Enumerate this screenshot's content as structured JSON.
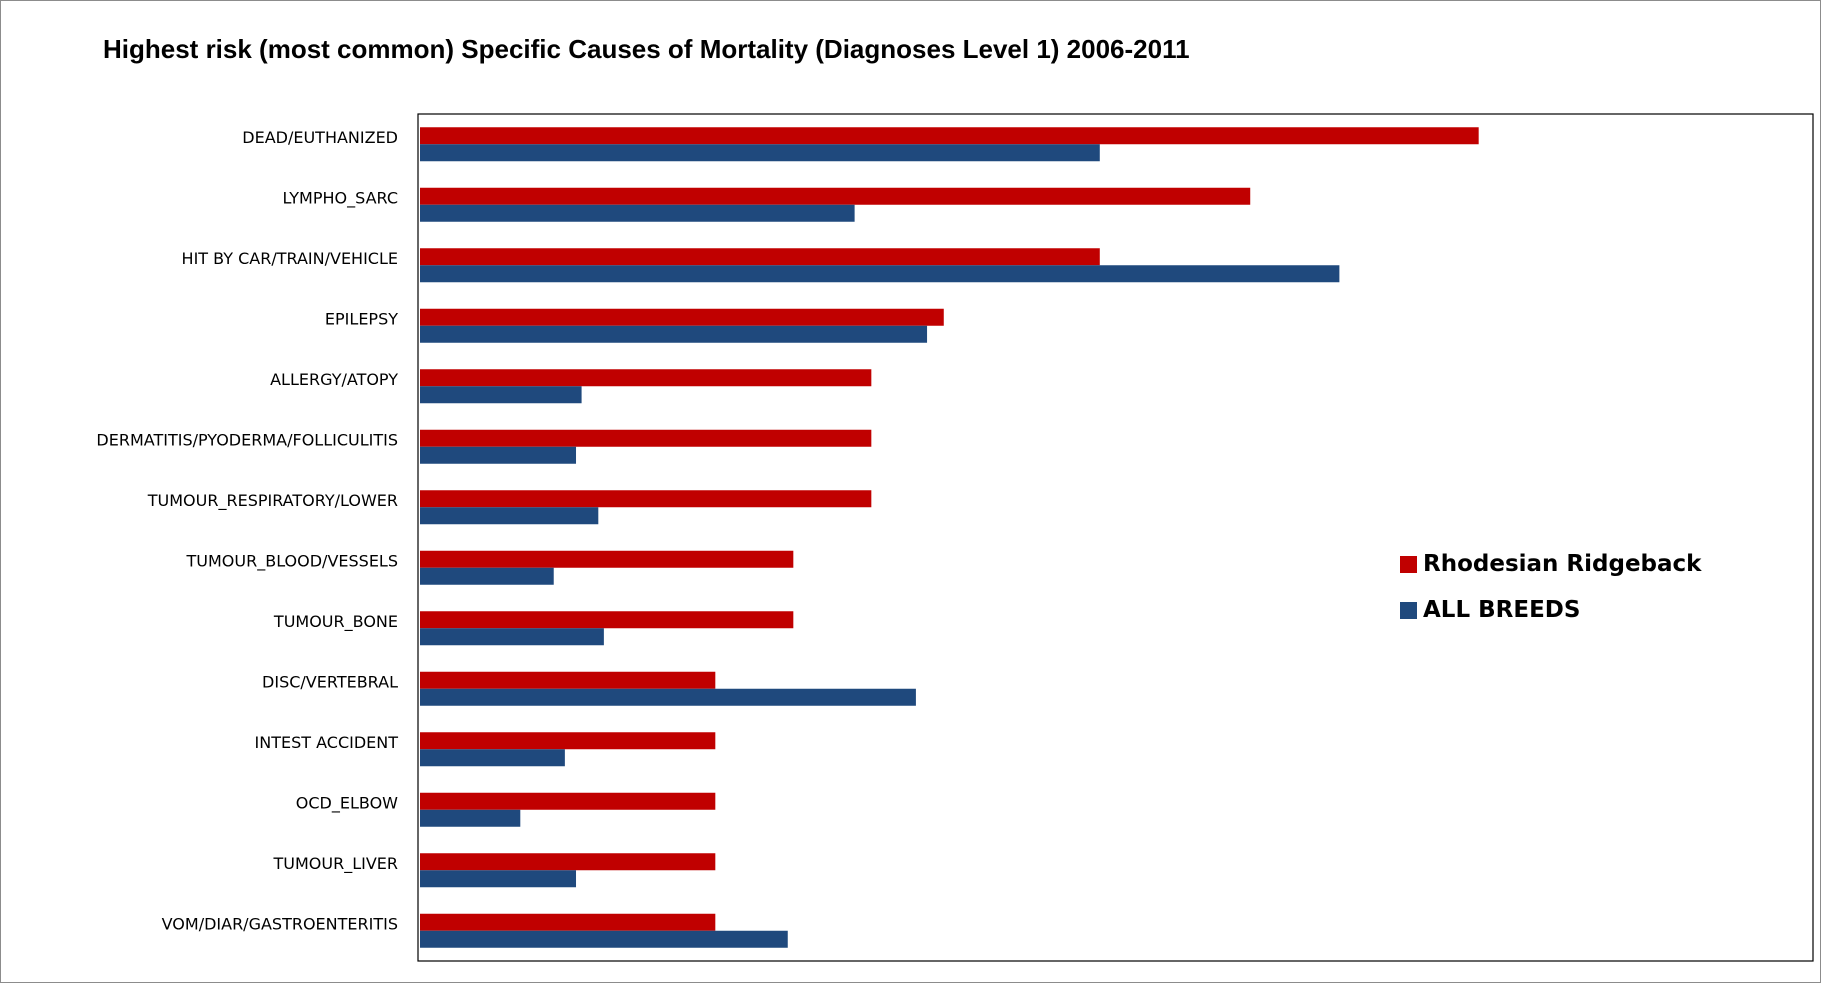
{
  "chart_data": {
    "type": "bar",
    "orientation": "horizontal",
    "title": "Highest risk (most common) Specific Causes of Mortality (Diagnoses Level  1) 2006-2011",
    "xlabel": "",
    "ylabel": "",
    "x_axis_ticks_shown": false,
    "grid": false,
    "legend_placement": "right",
    "categories": [
      "DEAD/EUTHANIZED",
      "LYMPHO_SARC",
      "HIT BY CAR/TRAIN/VEHICLE",
      "EPILEPSY",
      "ALLERGY/ATOPY",
      "DERMATITIS/PYODERMA/FOLLICULITIS",
      "TUMOUR_RESPIRATORY/LOWER",
      "TUMOUR_BLOOD/VESSELS",
      "TUMOUR_BONE",
      "DISC/VERTEBRAL",
      "INTEST ACCIDENT",
      "OCD_ELBOW",
      "TUMOUR_LIVER",
      "VOM/DIAR/GASTROENTERITIS"
    ],
    "series": [
      {
        "name": "Rhodesian Ridgeback",
        "color": "#c00000",
        "values": [
          19.0,
          14.9,
          12.2,
          9.4,
          8.1,
          8.1,
          8.1,
          6.7,
          6.7,
          5.3,
          5.3,
          5.3,
          5.3,
          5.3
        ]
      },
      {
        "name": "ALL BREEDS",
        "color": "#1f497d",
        "values": [
          12.2,
          7.8,
          16.5,
          9.1,
          2.9,
          2.8,
          3.2,
          2.4,
          3.3,
          8.9,
          2.6,
          1.8,
          2.8,
          6.6
        ]
      }
    ],
    "xlim": [
      0,
      25
    ]
  }
}
